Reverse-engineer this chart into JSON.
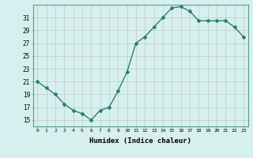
{
  "x": [
    0,
    1,
    2,
    3,
    4,
    5,
    6,
    7,
    8,
    9,
    10,
    11,
    12,
    13,
    14,
    15,
    16,
    17,
    18,
    19,
    20,
    21,
    22,
    23
  ],
  "y": [
    21,
    20,
    19,
    17.5,
    16.5,
    16,
    15,
    16.5,
    17,
    19.5,
    22.5,
    27,
    28,
    29.5,
    31,
    32.5,
    32.7,
    32.0,
    30.5,
    30.5,
    30.5,
    30.5,
    29.5,
    28
  ],
  "xlabel": "Humidex (Indice chaleur)",
  "ylabel": "",
  "ylim": [
    14,
    33
  ],
  "xlim": [
    -0.5,
    23.5
  ],
  "yticks": [
    15,
    17,
    19,
    21,
    23,
    25,
    27,
    29,
    31
  ],
  "xticks": [
    0,
    1,
    2,
    3,
    4,
    5,
    6,
    7,
    8,
    9,
    10,
    11,
    12,
    13,
    14,
    15,
    16,
    17,
    18,
    19,
    20,
    21,
    22,
    23
  ],
  "line_color": "#2e7d6e",
  "bg_color": "#d6f0ef",
  "grid_color": "#c0c8c8"
}
